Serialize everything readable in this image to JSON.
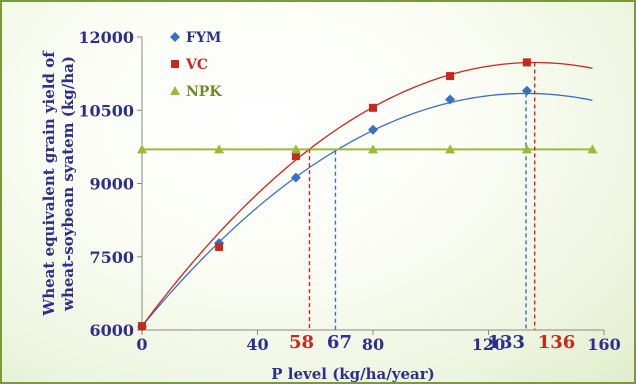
{
  "chart_data": {
    "type": "scatter",
    "title": "",
    "xlabel": "P level (kg/ha/year)",
    "ylabel": [
      "Wheat equivalent grain yield of",
      "wheat-soybean syatem (kg/ha)"
    ],
    "xlim": [
      0,
      160
    ],
    "ylim": [
      6000,
      12000
    ],
    "x_ticks": [
      "0",
      "40",
      "80",
      "120",
      "160"
    ],
    "y_ticks": [
      "6000",
      "7500",
      "9000",
      "10500",
      "12000"
    ],
    "grid": false,
    "legend_position": "top-left",
    "series": [
      {
        "name": "FYM",
        "color": "#3a6fc4",
        "marker": "diamond",
        "x": [
          0,
          26.7,
          53.3,
          80,
          106.7,
          133.3
        ],
        "y": [
          6070,
          7780,
          9120,
          10100,
          10720,
          10900
        ],
        "trend": {
          "type": "quadratic",
          "coef": [
            6080,
            71.6,
            -0.269
          ],
          "x_range": [
            0,
            156
          ]
        },
        "optimum_x": 67,
        "optimum_label": "67",
        "max_x": 133,
        "max_label": "133"
      },
      {
        "name": "VC",
        "color": "#c8281e",
        "marker": "square",
        "x": [
          0,
          26.7,
          53.3,
          80,
          106.7,
          133.3
        ],
        "y": [
          6080,
          7700,
          9560,
          10550,
          11200,
          11480
        ],
        "trend": {
          "type": "quadratic",
          "coef": [
            6080,
            79.4,
            -0.292
          ],
          "x_range": [
            0,
            156
          ]
        },
        "optimum_x": 58,
        "optimum_label": "58",
        "max_x": 136,
        "max_label": "136"
      },
      {
        "name": "NPK",
        "color": "#9bbb35",
        "marker": "triangle",
        "x": [
          0,
          26.7,
          53.3,
          80,
          106.7,
          133.3,
          156
        ],
        "y": [
          9700,
          9700,
          9700,
          9700,
          9700,
          9700,
          9700
        ],
        "trend": {
          "type": "constant",
          "coef": [
            9700
          ],
          "x_range": [
            0,
            156
          ]
        }
      }
    ]
  }
}
